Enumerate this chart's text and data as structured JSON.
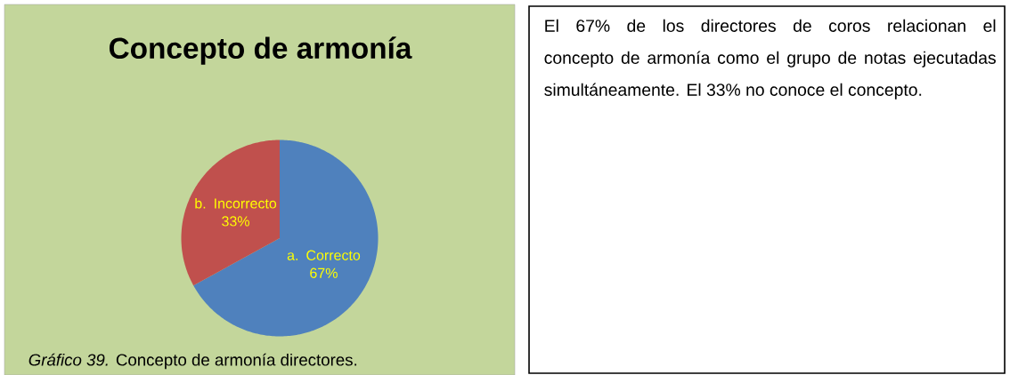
{
  "chart_data": [
    {
      "type": "pie",
      "title": "Concepto de armonía",
      "categories": [
        "a. Correcto",
        "b. Incorrecto"
      ],
      "values": [
        67,
        33
      ],
      "colors": [
        "#4f81bd",
        "#c0504d"
      ],
      "value_labels": [
        "67%",
        "33%"
      ],
      "annotations": [
        "*Gráfico 39.* Concepto de armonía directores."
      ]
    },
    {
      "type": "other",
      "annotations": [
        "El 67% de los directores de coros relacionan el concepto de armonía como el grupo de notas ejecutadas simultáneamente. El 33% no conoce el concepto."
      ]
    }
  ]
}
